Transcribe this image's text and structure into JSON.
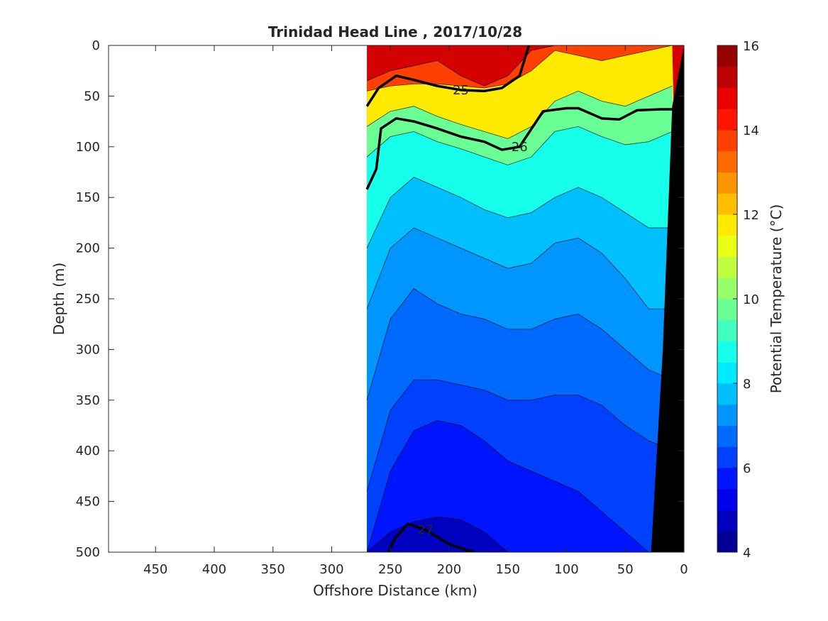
{
  "chart_data": {
    "type": "heatmap",
    "title": "Trinidad Head Line , 2017/10/28",
    "xlabel": "Offshore Distance (km)",
    "ylabel": "Depth (m)",
    "colorbar_label": "Potential Temperature (°C)",
    "xlim": [
      490,
      0
    ],
    "ylim": [
      0,
      500
    ],
    "x_reversed": true,
    "y_reversed": true,
    "x_ticks": [
      450,
      400,
      350,
      300,
      250,
      200,
      150,
      100,
      50,
      0
    ],
    "y_ticks": [
      0,
      50,
      100,
      150,
      200,
      250,
      300,
      350,
      400,
      450,
      500
    ],
    "colorbar_range": [
      4,
      16
    ],
    "colorbar_ticks": [
      4,
      6,
      8,
      10,
      12,
      14,
      16
    ],
    "data_extent_km": [
      270,
      0
    ],
    "bathymetry_color": "#000000",
    "stations_x": [
      270,
      250,
      230,
      210,
      190,
      170,
      150,
      130,
      110,
      90,
      70,
      50,
      30,
      10
    ],
    "temperature_by_level": [
      {
        "level": 14,
        "depths": [
          35,
          25,
          20,
          15,
          30,
          40,
          30,
          5,
          0,
          0,
          0,
          0,
          0,
          0
        ]
      },
      {
        "level": 12,
        "depths": [
          45,
          40,
          38,
          38,
          40,
          42,
          38,
          25,
          5,
          10,
          15,
          10,
          5,
          0
        ]
      },
      {
        "level": 10,
        "depths": [
          80,
          65,
          60,
          70,
          78,
          85,
          92,
          80,
          55,
          45,
          55,
          60,
          50,
          40
        ]
      },
      {
        "level": 9,
        "depths": [
          110,
          90,
          85,
          95,
          102,
          110,
          118,
          110,
          85,
          80,
          90,
          98,
          95,
          85
        ]
      },
      {
        "level": 8,
        "depths": [
          200,
          150,
          130,
          140,
          150,
          162,
          170,
          165,
          150,
          140,
          150,
          165,
          180,
          180
        ]
      },
      {
        "level": 7.5,
        "depths": [
          260,
          200,
          180,
          190,
          200,
          210,
          220,
          215,
          195,
          190,
          205,
          230,
          260,
          260
        ]
      },
      {
        "level": 7,
        "depths": [
          350,
          270,
          240,
          255,
          265,
          270,
          280,
          280,
          270,
          265,
          280,
          300,
          320,
          330
        ]
      },
      {
        "level": 6.5,
        "depths": [
          440,
          360,
          330,
          330,
          335,
          340,
          350,
          350,
          345,
          345,
          355,
          375,
          390,
          400
        ]
      },
      {
        "level": 6,
        "depths": [
          500,
          420,
          380,
          370,
          375,
          390,
          410,
          420,
          430,
          440,
          460,
          480,
          500,
          500
        ]
      },
      {
        "level": 5,
        "depths": [
          500,
          480,
          470,
          465,
          468,
          480,
          500,
          500,
          500,
          500,
          500,
          500,
          500,
          500
        ]
      }
    ],
    "density_contours": [
      {
        "label": "25",
        "x": [
          270,
          260,
          245,
          230,
          210,
          190,
          170,
          155,
          140,
          132
        ],
        "y": [
          60,
          42,
          30,
          34,
          40,
          44,
          45,
          42,
          30,
          0
        ]
      },
      {
        "label": "26",
        "x": [
          270,
          262,
          258,
          245,
          230,
          210,
          190,
          170,
          155,
          140,
          120,
          100,
          90,
          70,
          55,
          40,
          20,
          10
        ],
        "y": [
          142,
          122,
          82,
          72,
          75,
          82,
          90,
          95,
          103,
          100,
          65,
          62,
          62,
          72,
          73,
          64,
          63,
          63
        ]
      },
      {
        "label": "27",
        "x": [
          252,
          246,
          235,
          220,
          200,
          185,
          178
        ],
        "y": [
          500,
          486,
          472,
          478,
          492,
          498,
          500
        ]
      }
    ]
  }
}
